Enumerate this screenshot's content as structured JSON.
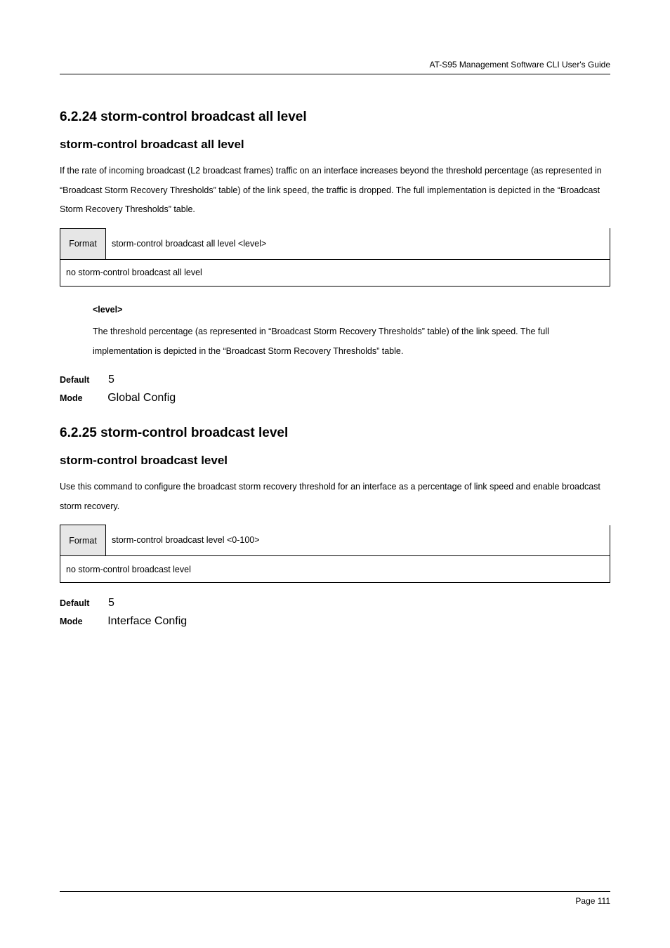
{
  "header": {
    "doc_title": "AT-S95 Management Software CLI User's Guide"
  },
  "section1": {
    "number": "6.2.24 storm-control broadcast all level",
    "title": "storm-control broadcast all level",
    "paragraph": "If the rate of incoming broadcast (L2 broadcast frames) traffic on an interface increases beyond the threshold percentage (as represented in “Broadcast Storm Recovery Thresholds” table) of the link speed, the traffic is dropped. The full implementation is depicted in the “Broadcast Storm Recovery Thresholds” table.",
    "table": {
      "format_label": "Format",
      "format_value": "storm-control broadcast all level <level>",
      "no_format_value": "no storm-control broadcast all level"
    },
    "sub": {
      "heading": "<level>",
      "text": "The threshold percentage (as represented in “Broadcast Storm Recovery Thresholds” table) of the link speed. The full implementation is depicted in the “Broadcast Storm Recovery Thresholds” table."
    },
    "default": {
      "label": "Default",
      "value": "5"
    },
    "mode": {
      "label": "Mode",
      "value": "Global Config"
    }
  },
  "section2": {
    "number": "6.2.25 storm-control broadcast level",
    "title": "storm-control broadcast level",
    "paragraph": "Use this command to configure the broadcast storm recovery threshold for an interface as a percentage of link speed and enable broadcast storm recovery.",
    "table": {
      "format_label": "Format",
      "format_value": "storm-control broadcast level <0-100>",
      "no_format_value": "no storm-control broadcast level"
    },
    "default": {
      "label": "Default",
      "value": "5"
    },
    "mode": {
      "label": "Mode",
      "value": "Interface Config"
    }
  },
  "footer": {
    "text": "Page 111"
  }
}
